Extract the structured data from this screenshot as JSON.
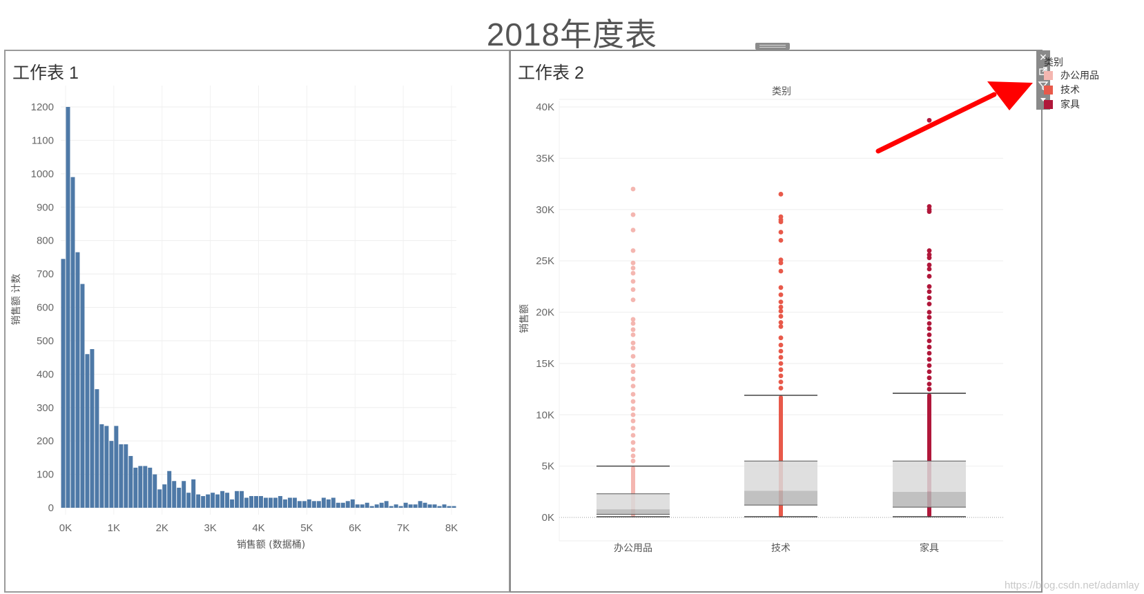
{
  "dashboard": {
    "title": "2018年度表",
    "watermark": "https://blog.csdn.net/adamlay"
  },
  "toolbar": {
    "close_icon": "close-icon",
    "popout_icon": "popout-icon",
    "filter_icon": "filter-icon",
    "menu_icon": "dropdown-icon"
  },
  "legend": {
    "title": "类别",
    "items": [
      {
        "label": "办公用品",
        "color": "#f4b6b0"
      },
      {
        "label": "技术",
        "color": "#e8594a"
      },
      {
        "label": "家具",
        "color": "#b0173a"
      }
    ]
  },
  "annotation": {
    "type": "arrow",
    "color": "#ff0000",
    "points_to": "filter-icon"
  },
  "chart_data": [
    {
      "type": "bar",
      "title": "工作表 1",
      "xlabel": "销售额 (数据桶)",
      "ylabel": "销售额 计数",
      "color": "#4e79a7",
      "xlim": [
        -100,
        8100
      ],
      "ylim": [
        0,
        1200
      ],
      "bin_width": 100,
      "xticks": [
        0,
        1000,
        2000,
        3000,
        4000,
        5000,
        6000,
        7000,
        8000
      ],
      "xtick_labels": [
        "0K",
        "1K",
        "2K",
        "3K",
        "4K",
        "5K",
        "6K",
        "7K",
        "8K"
      ],
      "yticks": [
        0,
        100,
        200,
        300,
        400,
        500,
        600,
        700,
        800,
        900,
        1000,
        1100,
        1200
      ],
      "grid": true,
      "bin_starts": [
        -100,
        0,
        100,
        200,
        300,
        400,
        500,
        600,
        700,
        800,
        900,
        1000,
        1100,
        1200,
        1300,
        1400,
        1500,
        1600,
        1700,
        1800,
        1900,
        2000,
        2100,
        2200,
        2300,
        2400,
        2500,
        2600,
        2700,
        2800,
        2900,
        3000,
        3100,
        3200,
        3300,
        3400,
        3500,
        3600,
        3700,
        3800,
        3900,
        4000,
        4100,
        4200,
        4300,
        4400,
        4500,
        4600,
        4700,
        4800,
        4900,
        5000,
        5100,
        5200,
        5300,
        5400,
        5500,
        5600,
        5700,
        5800,
        5900,
        6000,
        6100,
        6200,
        6300,
        6400,
        6500,
        6600,
        6700,
        6800,
        6900,
        7000,
        7100,
        7200,
        7300,
        7400,
        7500,
        7600,
        7700,
        7800,
        7900,
        8000
      ],
      "values": [
        745,
        1200,
        990,
        765,
        670,
        460,
        475,
        355,
        250,
        245,
        200,
        245,
        190,
        190,
        155,
        120,
        125,
        125,
        120,
        100,
        55,
        70,
        110,
        80,
        60,
        80,
        45,
        85,
        40,
        35,
        40,
        45,
        40,
        50,
        45,
        25,
        50,
        50,
        30,
        35,
        35,
        35,
        30,
        30,
        30,
        35,
        25,
        30,
        30,
        20,
        20,
        25,
        20,
        20,
        30,
        25,
        30,
        15,
        15,
        20,
        25,
        10,
        10,
        15,
        5,
        10,
        15,
        20,
        5,
        10,
        5,
        15,
        10,
        10,
        20,
        15,
        10,
        10,
        5,
        10,
        5,
        5
      ]
    },
    {
      "type": "box",
      "title": "工作表 2",
      "header": "类别",
      "ylabel": "销售额",
      "ylim": [
        0,
        40000
      ],
      "yticks": [
        0,
        5000,
        10000,
        15000,
        20000,
        25000,
        30000,
        35000,
        40000
      ],
      "ytick_labels": [
        "0K",
        "5K",
        "10K",
        "15K",
        "20K",
        "25K",
        "30K",
        "35K",
        "40K"
      ],
      "grid": true,
      "categories": [
        "办公用品",
        "技术",
        "家具"
      ],
      "series": [
        {
          "name": "办公用品",
          "color": "#f4b6b0",
          "whisker_low": 0,
          "q1": 300,
          "median": 800,
          "q3": 2300,
          "whisker_high": 5000,
          "points": [
            32000,
            29500,
            28000,
            26000,
            24800,
            24300,
            23800,
            23000,
            22200,
            21200,
            19300,
            18900,
            18300,
            17800,
            17000,
            16500,
            15700,
            14800,
            14200,
            13500,
            12800,
            12000,
            11300,
            10600,
            10000,
            9400,
            8700,
            8000,
            7300,
            6600,
            6000,
            5500
          ]
        },
        {
          "name": "技术",
          "color": "#e8594a",
          "whisker_low": 0,
          "q1": 1200,
          "median": 2600,
          "q3": 5500,
          "whisker_high": 11900,
          "points": [
            31500,
            29300,
            29000,
            28800,
            27800,
            27000,
            25100,
            24800,
            24000,
            22400,
            21700,
            21000,
            20500,
            20100,
            19600,
            19000,
            18600,
            17500,
            16800,
            16200,
            15600,
            15000,
            14400,
            13800,
            13200,
            12600
          ]
        },
        {
          "name": "家具",
          "color": "#b0173a",
          "whisker_low": 0,
          "q1": 1000,
          "median": 2500,
          "q3": 5500,
          "whisker_high": 12100,
          "points": [
            38700,
            30300,
            30000,
            29800,
            26000,
            25600,
            25300,
            24600,
            24200,
            23500,
            22500,
            22000,
            21400,
            20800,
            20000,
            19500,
            18900,
            18400,
            17800,
            17200,
            16600,
            16000,
            15400,
            14800,
            14200,
            13600,
            13000,
            12500
          ]
        }
      ]
    }
  ]
}
